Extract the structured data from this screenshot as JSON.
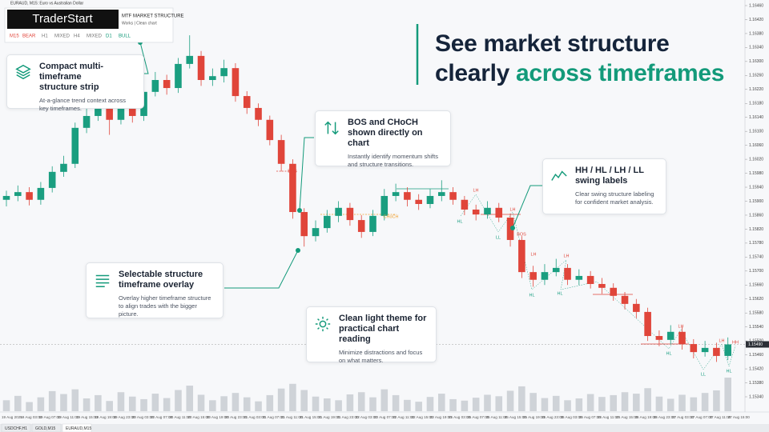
{
  "window_title": "EURAUD, M15: Euro vs Australian Dollar",
  "strip": {
    "brand": "TraderStart",
    "title": "MTF MARKET STRUCTURE",
    "subtitle": "Works | Clean chart",
    "timeframes": [
      {
        "tf": "M15",
        "state": "BEAR"
      },
      {
        "tf": "H1",
        "state": "MIXED"
      },
      {
        "tf": "H4",
        "state": "MIXED"
      },
      {
        "tf": "D1",
        "state": "BULL"
      }
    ]
  },
  "headline": {
    "line1": "See market structure",
    "line2_dark": "clearly",
    "line2_accent": "across timeframes"
  },
  "callouts": [
    {
      "title": [
        "Compact multi-timeframe",
        "structure strip"
      ],
      "body": [
        "At-a-glance trend context across",
        "key timeframes."
      ]
    },
    {
      "title": [
        "BOS and CHoCH",
        "shown directly on chart"
      ],
      "body": [
        "Instantly identify momentum shifts",
        "and structure transitions."
      ]
    },
    {
      "title": [
        "HH / HL / LH / LL",
        "swing labels"
      ],
      "body": [
        "Clear swing structure labeling",
        "for confident market analysis."
      ]
    },
    {
      "title": [
        "Selectable structure",
        "timeframe overlay"
      ],
      "body": [
        "Overlay higher timeframe structure",
        "to align trades with the bigger picture."
      ]
    },
    {
      "title": [
        "Clean light theme for",
        "practical chart reading"
      ],
      "body": [
        "Minimize distractions and focus",
        "on what matters."
      ]
    }
  ],
  "tabs": [
    "USDCHF,H1",
    "GOLD,M15",
    "EURAUD,M15"
  ],
  "chart_data": {
    "type": "candlestick",
    "up_color": "#1a9e80",
    "down_color": "#e0453a",
    "ylim": [
      1.1534,
      1.1646
    ],
    "yticks": [
      {
        "value": 1.1646,
        "label": "1.16460"
      },
      {
        "value": 1.1642,
        "label": "1.16420"
      },
      {
        "value": 1.1638,
        "label": "1.16380"
      },
      {
        "value": 1.1634,
        "label": "1.16340"
      },
      {
        "value": 1.163,
        "label": "1.16300"
      },
      {
        "value": 1.1626,
        "label": "1.16260"
      },
      {
        "value": 1.1622,
        "label": "1.16220"
      },
      {
        "value": 1.1618,
        "label": "1.16180"
      },
      {
        "value": 1.1614,
        "label": "1.16140"
      },
      {
        "value": 1.161,
        "label": "1.16100"
      },
      {
        "value": 1.1606,
        "label": "1.16060"
      },
      {
        "value": 1.1602,
        "label": "1.16020"
      },
      {
        "value": 1.1598,
        "label": "1.15980"
      },
      {
        "value": 1.1594,
        "label": "1.15940"
      },
      {
        "value": 1.159,
        "label": "1.15900"
      },
      {
        "value": 1.1586,
        "label": "1.15860"
      },
      {
        "value": 1.1582,
        "label": "1.15820"
      },
      {
        "value": 1.1578,
        "label": "1.15780"
      },
      {
        "value": 1.1574,
        "label": "1.15740"
      },
      {
        "value": 1.157,
        "label": "1.15700"
      },
      {
        "value": 1.1566,
        "label": "1.15660"
      },
      {
        "value": 1.1562,
        "label": "1.15620"
      },
      {
        "value": 1.1558,
        "label": "1.15580"
      },
      {
        "value": 1.1554,
        "label": "1.15540"
      },
      {
        "value": 1.155,
        "label": "1.15500"
      },
      {
        "value": 1.1546,
        "label": "1.15460"
      },
      {
        "value": 1.1542,
        "label": "1.15420"
      },
      {
        "value": 1.1538,
        "label": "1.15380"
      },
      {
        "value": 1.1534,
        "label": "1.15340"
      }
    ],
    "current_price": {
      "value": 1.1549,
      "label": "1.15490"
    },
    "x_labels": [
      "19 Aug 2025",
      "19 Aug 03:00",
      "19 Aug 07:00",
      "19 Aug 11:00",
      "19 Aug 15:00",
      "19 Aug 19:00",
      "19 Aug 23:00",
      "20 Aug 03:00",
      "20 Aug 07:00",
      "20 Aug 11:00",
      "20 Aug 15:00",
      "20 Aug 19:00",
      "20 Aug 23:00",
      "21 Aug 03:00",
      "21 Aug 07:00",
      "21 Aug 11:00",
      "21 Aug 15:00",
      "21 Aug 19:00",
      "21 Aug 23:00",
      "22 Aug 03:00",
      "22 Aug 07:00",
      "22 Aug 11:00",
      "22 Aug 15:00",
      "22 Aug 19:00",
      "25 Aug 03:00",
      "25 Aug 07:00",
      "25 Aug 11:00",
      "25 Aug 15:00",
      "25 Aug 19:00",
      "25 Aug 23:00",
      "26 Aug 03:00",
      "26 Aug 07:00",
      "26 Aug 11:00",
      "26 Aug 15:00",
      "26 Aug 19:00",
      "26 Aug 23:00",
      "27 Aug 03:00",
      "27 Aug 07:00",
      "27 Aug 11:00",
      "27 Aug 15:00"
    ],
    "open": [
      1.15904,
      1.15915,
      1.15926,
      1.15904,
      1.15938,
      1.15984,
      1.16007,
      1.1611,
      1.16144,
      1.16178,
      1.16133,
      1.16178,
      1.16144,
      1.16213,
      1.16247,
      1.16224,
      1.16293,
      1.16316,
      1.16247,
      1.16258,
      1.16281,
      1.16201,
      1.16167,
      1.16133,
      1.16075,
      1.16007,
      1.15869,
      1.158,
      1.15823,
      1.15858,
      1.15881,
      1.15846,
      1.15812,
      1.15858,
      1.15915,
      1.15926,
      1.15904,
      1.15892,
      1.15915,
      1.15926,
      1.15904,
      1.15876,
      1.15862,
      1.15881,
      1.15853,
      1.15789,
      1.15697,
      1.15675,
      1.15697,
      1.15709,
      1.15675,
      1.15686,
      1.15663,
      1.15652,
      1.15629,
      1.15606,
      1.15583,
      1.15514,
      1.15503,
      1.15526,
      1.15491,
      1.15468,
      1.1548,
      1.15457
    ],
    "high": [
      1.1593,
      1.15945,
      1.1594,
      1.15955,
      1.16,
      1.1603,
      1.16125,
      1.1617,
      1.16195,
      1.1619,
      1.162,
      1.16195,
      1.1623,
      1.1627,
      1.16262,
      1.1631,
      1.16375,
      1.1633,
      1.1628,
      1.16305,
      1.16295,
      1.16215,
      1.1618,
      1.16145,
      1.1609,
      1.1602,
      1.1588,
      1.15845,
      1.15875,
      1.159,
      1.15895,
      1.1586,
      1.15875,
      1.15935,
      1.1595,
      1.1594,
      1.1592,
      1.15935,
      1.1596,
      1.1594,
      1.15915,
      1.1589,
      1.159,
      1.15895,
      1.15865,
      1.158,
      1.15715,
      1.1572,
      1.15735,
      1.1572,
      1.15705,
      1.157,
      1.1568,
      1.15665,
      1.1564,
      1.1562,
      1.15595,
      1.1553,
      1.15545,
      1.1554,
      1.15505,
      1.155,
      1.15495,
      1.1551
    ],
    "low": [
      1.15885,
      1.159,
      1.15888,
      1.1589,
      1.15925,
      1.1597,
      1.15995,
      1.16095,
      1.1613,
      1.1609,
      1.1612,
      1.16125,
      1.1613,
      1.162,
      1.16205,
      1.1621,
      1.1628,
      1.1623,
      1.1623,
      1.1624,
      1.16185,
      1.1615,
      1.16115,
      1.1606,
      1.15985,
      1.1585,
      1.1577,
      1.15785,
      1.1581,
      1.1584,
      1.1583,
      1.15795,
      1.158,
      1.15845,
      1.159,
      1.15885,
      1.15875,
      1.1588,
      1.159,
      1.1589,
      1.1586,
      1.15845,
      1.1585,
      1.1584,
      1.1577,
      1.1568,
      1.15655,
      1.1566,
      1.15685,
      1.1566,
      1.1566,
      1.1565,
      1.15635,
      1.15615,
      1.1559,
      1.15565,
      1.155,
      1.15485,
      1.1549,
      1.15475,
      1.1545,
      1.15455,
      1.1544,
      1.15445
    ],
    "close": [
      1.15915,
      1.15926,
      1.15904,
      1.15938,
      1.15984,
      1.16007,
      1.1611,
      1.16144,
      1.16178,
      1.16133,
      1.16178,
      1.16144,
      1.16213,
      1.16247,
      1.16224,
      1.16293,
      1.16316,
      1.16247,
      1.16258,
      1.16281,
      1.16201,
      1.16167,
      1.16133,
      1.16075,
      1.16007,
      1.15869,
      1.158,
      1.15823,
      1.15858,
      1.15881,
      1.15846,
      1.15812,
      1.15858,
      1.15915,
      1.15926,
      1.15904,
      1.15892,
      1.15915,
      1.15926,
      1.15904,
      1.15876,
      1.15862,
      1.15881,
      1.15853,
      1.15789,
      1.15697,
      1.15675,
      1.15697,
      1.15709,
      1.15675,
      1.15686,
      1.15663,
      1.15652,
      1.15629,
      1.15606,
      1.15583,
      1.15514,
      1.15503,
      1.15526,
      1.15491,
      1.15468,
      1.1548,
      1.15457,
      1.1549
    ],
    "volume": [
      30,
      42,
      25,
      38,
      55,
      47,
      60,
      35,
      44,
      28,
      52,
      40,
      33,
      48,
      36,
      58,
      70,
      45,
      30,
      41,
      50,
      38,
      27,
      44,
      62,
      75,
      58,
      40,
      35,
      30,
      46,
      52,
      38,
      60,
      44,
      31,
      26,
      39,
      48,
      33,
      29,
      37,
      45,
      41,
      56,
      68,
      50,
      36,
      42,
      30,
      35,
      47,
      39,
      44,
      52,
      48,
      63,
      40,
      34,
      45,
      38,
      50,
      57,
      92
    ],
    "structure_labels": [
      "BOS",
      "CHoCH",
      "HL",
      "LH",
      "LL",
      "LH",
      "BOS",
      "LH",
      "HL",
      "LH",
      "HL",
      "LH",
      "HL",
      "LL",
      "HL",
      "LH",
      "HH"
    ]
  }
}
